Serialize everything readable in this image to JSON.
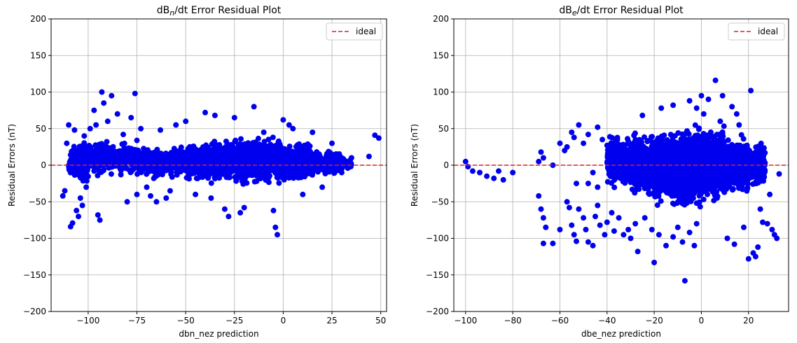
{
  "chart_data": [
    {
      "type": "scatter",
      "title_prefix": "dB",
      "title_sub": "n",
      "title_suffix": "/dt Error Residual Plot",
      "xlabel": "dbn_nez prediction",
      "ylabel": "Residual Errors (nT)",
      "xlim": [
        -119,
        53
      ],
      "ylim": [
        -200,
        200
      ],
      "xticks": [
        -100,
        -75,
        -50,
        -25,
        0,
        25,
        50
      ],
      "yticks": [
        -200,
        -150,
        -100,
        -50,
        0,
        50,
        100,
        150,
        200
      ],
      "grid": true,
      "legend": {
        "position": "top-right",
        "label": "ideal"
      },
      "ideal_y": 0,
      "point_color": "#0000ee",
      "ideal_color": "#d62728",
      "cloud": [
        {
          "x": [
            -110,
            -100
          ],
          "y": [
            -30,
            35
          ],
          "n": 160
        },
        {
          "x": [
            -100,
            -75
          ],
          "y": [
            -20,
            38
          ],
          "n": 260
        },
        {
          "x": [
            -75,
            -50
          ],
          "y": [
            -20,
            30
          ],
          "n": 330
        },
        {
          "x": [
            -50,
            -25
          ],
          "y": [
            -28,
            38
          ],
          "n": 500
        },
        {
          "x": [
            -25,
            0
          ],
          "y": [
            -30,
            42
          ],
          "n": 600
        },
        {
          "x": [
            0,
            15
          ],
          "y": [
            -25,
            32
          ],
          "n": 380
        },
        {
          "x": [
            15,
            30
          ],
          "y": [
            -15,
            22
          ],
          "n": 220
        },
        {
          "x": [
            28,
            35
          ],
          "y": [
            -8,
            12
          ],
          "n": 50
        }
      ],
      "points": [
        [
          -113,
          -42
        ],
        [
          -112,
          -35
        ],
        [
          -111,
          30
        ],
        [
          -110,
          55
        ],
        [
          -109,
          -84
        ],
        [
          -108,
          -79
        ],
        [
          -107,
          48
        ],
        [
          -106,
          -62
        ],
        [
          -105,
          -70
        ],
        [
          -104,
          -45
        ],
        [
          -103,
          -55
        ],
        [
          -102,
          40
        ],
        [
          -101,
          -30
        ],
        [
          -99,
          50
        ],
        [
          -97,
          75
        ],
        [
          -96,
          55
        ],
        [
          -95,
          -68
        ],
        [
          -94,
          -75
        ],
        [
          -93,
          100
        ],
        [
          -92,
          85
        ],
        [
          -90,
          60
        ],
        [
          -88,
          95
        ],
        [
          -85,
          70
        ],
        [
          -82,
          42
        ],
        [
          -80,
          -50
        ],
        [
          -78,
          65
        ],
        [
          -76,
          98
        ],
        [
          -75,
          -40
        ],
        [
          -73,
          50
        ],
        [
          -70,
          -30
        ],
        [
          -68,
          -42
        ],
        [
          -65,
          -50
        ],
        [
          -63,
          48
        ],
        [
          -60,
          -45
        ],
        [
          -58,
          -35
        ],
        [
          -55,
          55
        ],
        [
          -50,
          60
        ],
        [
          -45,
          -40
        ],
        [
          -40,
          72
        ],
        [
          -37,
          -45
        ],
        [
          -35,
          68
        ],
        [
          -30,
          -60
        ],
        [
          -28,
          -70
        ],
        [
          -25,
          65
        ],
        [
          -22,
          -65
        ],
        [
          -20,
          -58
        ],
        [
          -15,
          80
        ],
        [
          -10,
          45
        ],
        [
          -5,
          -62
        ],
        [
          -4,
          -85
        ],
        [
          -3,
          -95
        ],
        [
          0,
          62
        ],
        [
          3,
          55
        ],
        [
          5,
          50
        ],
        [
          10,
          -40
        ],
        [
          15,
          45
        ],
        [
          20,
          -30
        ],
        [
          25,
          30
        ],
        [
          30,
          -10
        ],
        [
          35,
          10
        ],
        [
          44,
          12
        ],
        [
          47,
          41
        ],
        [
          49,
          37
        ]
      ]
    },
    {
      "type": "scatter",
      "title_prefix": "dB",
      "title_sub": "e",
      "title_suffix": "/dt Error Residual Plot",
      "xlabel": "dbe_nez prediction",
      "ylabel": "Residual Errors (nT)",
      "xlim": [
        -105,
        37
      ],
      "ylim": [
        -200,
        200
      ],
      "xticks": [
        -100,
        -80,
        -60,
        -40,
        -20,
        0,
        20
      ],
      "yticks": [
        -200,
        -150,
        -100,
        -50,
        0,
        50,
        100,
        150,
        200
      ],
      "grid": true,
      "legend": {
        "position": "top-right",
        "label": "ideal"
      },
      "ideal_y": 0,
      "point_color": "#0000ee",
      "ideal_color": "#d62728",
      "cloud": [
        {
          "x": [
            -40,
            -30
          ],
          "y": [
            -35,
            45
          ],
          "n": 260
        },
        {
          "x": [
            -30,
            -20
          ],
          "y": [
            -50,
            48
          ],
          "n": 420
        },
        {
          "x": [
            -20,
            -10
          ],
          "y": [
            -60,
            55
          ],
          "n": 600
        },
        {
          "x": [
            -10,
            0
          ],
          "y": [
            -65,
            60
          ],
          "n": 700
        },
        {
          "x": [
            0,
            10
          ],
          "y": [
            -55,
            58
          ],
          "n": 600
        },
        {
          "x": [
            10,
            20
          ],
          "y": [
            -45,
            45
          ],
          "n": 420
        },
        {
          "x": [
            20,
            27
          ],
          "y": [
            -30,
            32
          ],
          "n": 160
        }
      ],
      "points": [
        [
          -100,
          5
        ],
        [
          -99,
          -2
        ],
        [
          -97,
          -8
        ],
        [
          -94,
          -10
        ],
        [
          -91,
          -15
        ],
        [
          -88,
          -18
        ],
        [
          -86,
          -8
        ],
        [
          -84,
          -20
        ],
        [
          -80,
          -10
        ],
        [
          -69,
          5
        ],
        [
          -68,
          18
        ],
        [
          -69,
          -42
        ],
        [
          -68,
          -60
        ],
        [
          -67,
          -72
        ],
        [
          -66,
          -85
        ],
        [
          -67,
          -107
        ],
        [
          -63,
          -107
        ],
        [
          -60,
          -88
        ],
        [
          -57,
          -50
        ],
        [
          -56,
          -58
        ],
        [
          -55,
          -82
        ],
        [
          -54,
          -95
        ],
        [
          -53,
          -104
        ],
        [
          -52,
          -60
        ],
        [
          -50,
          -72
        ],
        [
          -49,
          -88
        ],
        [
          -48,
          -105
        ],
        [
          -46,
          -110
        ],
        [
          -45,
          -70
        ],
        [
          -44,
          -55
        ],
        [
          -43,
          -82
        ],
        [
          -41,
          -95
        ],
        [
          -40,
          -78
        ],
        [
          -38,
          -65
        ],
        [
          -37,
          -90
        ],
        [
          -35,
          -72
        ],
        [
          -33,
          -95
        ],
        [
          -31,
          -88
        ],
        [
          -30,
          -100
        ],
        [
          -28,
          -80
        ],
        [
          -27,
          -118
        ],
        [
          -24,
          -72
        ],
        [
          -21,
          -88
        ],
        [
          -20,
          -133
        ],
        [
          -18,
          -95
        ],
        [
          -15,
          -110
        ],
        [
          -12,
          -98
        ],
        [
          -10,
          -85
        ],
        [
          -8,
          -105
        ],
        [
          -7,
          -158
        ],
        [
          -5,
          -92
        ],
        [
          -3,
          -110
        ],
        [
          -2,
          -80
        ],
        [
          0,
          95
        ],
        [
          3,
          90
        ],
        [
          6,
          116
        ],
        [
          9,
          95
        ],
        [
          11,
          -100
        ],
        [
          13,
          80
        ],
        [
          14,
          -108
        ],
        [
          15,
          70
        ],
        [
          16,
          55
        ],
        [
          18,
          -85
        ],
        [
          20,
          -128
        ],
        [
          21,
          102
        ],
        [
          22,
          -120
        ],
        [
          23,
          -125
        ],
        [
          24,
          -112
        ],
        [
          25,
          -60
        ],
        [
          26,
          -78
        ],
        [
          28,
          -80
        ],
        [
          29,
          -40
        ],
        [
          30,
          -88
        ],
        [
          31,
          -95
        ],
        [
          32,
          -100
        ],
        [
          33,
          -12
        ],
        [
          -63,
          0
        ],
        [
          -67,
          10
        ],
        [
          -58,
          20
        ],
        [
          -55,
          45
        ],
        [
          -54,
          38
        ],
        [
          -52,
          55
        ],
        [
          -50,
          30
        ],
        [
          -48,
          42
        ],
        [
          -44,
          52
        ],
        [
          -42,
          35
        ],
        [
          -25,
          68
        ],
        [
          -17,
          78
        ],
        [
          -12,
          82
        ],
        [
          -5,
          88
        ],
        [
          -2,
          78
        ],
        [
          1,
          70
        ],
        [
          8,
          60
        ],
        [
          -60,
          30
        ],
        [
          -57,
          25
        ],
        [
          -53,
          -25
        ],
        [
          -48,
          -25
        ],
        [
          -46,
          -10
        ],
        [
          -44,
          -30
        ]
      ]
    }
  ]
}
